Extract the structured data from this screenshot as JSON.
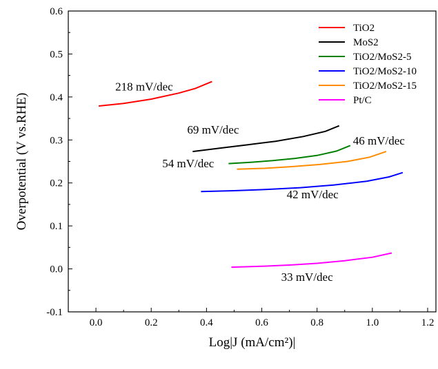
{
  "chart_data": {
    "type": "line",
    "xlabel": "Log|J (mA/cm²)|",
    "ylabel": "Overpotential (V vs.RHE)",
    "xlim": [
      -0.1,
      1.23
    ],
    "ylim": [
      -0.1,
      0.6
    ],
    "xticks": [
      "0.0",
      "0.2",
      "0.4",
      "0.6",
      "0.8",
      "1.0",
      "1.2"
    ],
    "yticks": [
      "-0.1",
      "0.0",
      "0.1",
      "0.2",
      "0.3",
      "0.4",
      "0.5",
      "0.6"
    ],
    "grid": false,
    "legend_position": "top-right",
    "series": [
      {
        "name": "TiO2",
        "color": "#ff0000",
        "x": [
          0.01,
          0.1,
          0.2,
          0.3,
          0.36,
          0.42
        ],
        "y": [
          0.379,
          0.385,
          0.395,
          0.409,
          0.42,
          0.436
        ],
        "slope_label": "218 mV/dec"
      },
      {
        "name": "MoS2",
        "color": "#000000",
        "x": [
          0.35,
          0.45,
          0.55,
          0.65,
          0.75,
          0.83,
          0.88
        ],
        "y": [
          0.273,
          0.281,
          0.289,
          0.297,
          0.308,
          0.32,
          0.333
        ],
        "slope_label": "69 mV/dec"
      },
      {
        "name": "TiO2/MoS2-5",
        "color": "#008000",
        "x": [
          0.48,
          0.56,
          0.64,
          0.72,
          0.8,
          0.87,
          0.92
        ],
        "y": [
          0.245,
          0.248,
          0.252,
          0.257,
          0.264,
          0.274,
          0.287
        ],
        "slope_label": "54 mV/dec"
      },
      {
        "name": "TiO2/MoS2-10",
        "color": "#0000ff",
        "x": [
          0.38,
          0.5,
          0.62,
          0.74,
          0.86,
          0.98,
          1.06,
          1.11
        ],
        "y": [
          0.18,
          0.182,
          0.185,
          0.189,
          0.195,
          0.204,
          0.214,
          0.224
        ],
        "slope_label": "42 mV/dec"
      },
      {
        "name": "TiO2/MoS2-15",
        "color": "#ff8c00",
        "x": [
          0.51,
          0.61,
          0.71,
          0.81,
          0.91,
          0.99,
          1.05
        ],
        "y": [
          0.232,
          0.234,
          0.238,
          0.243,
          0.25,
          0.26,
          0.273
        ],
        "slope_label": "46 mV/dec"
      },
      {
        "name": "Pt/C",
        "color": "#ff00ff",
        "x": [
          0.49,
          0.6,
          0.7,
          0.8,
          0.9,
          1.0,
          1.07
        ],
        "y": [
          0.004,
          0.006,
          0.009,
          0.013,
          0.019,
          0.027,
          0.037
        ],
        "slope_label": "33 mV/dec"
      }
    ]
  }
}
